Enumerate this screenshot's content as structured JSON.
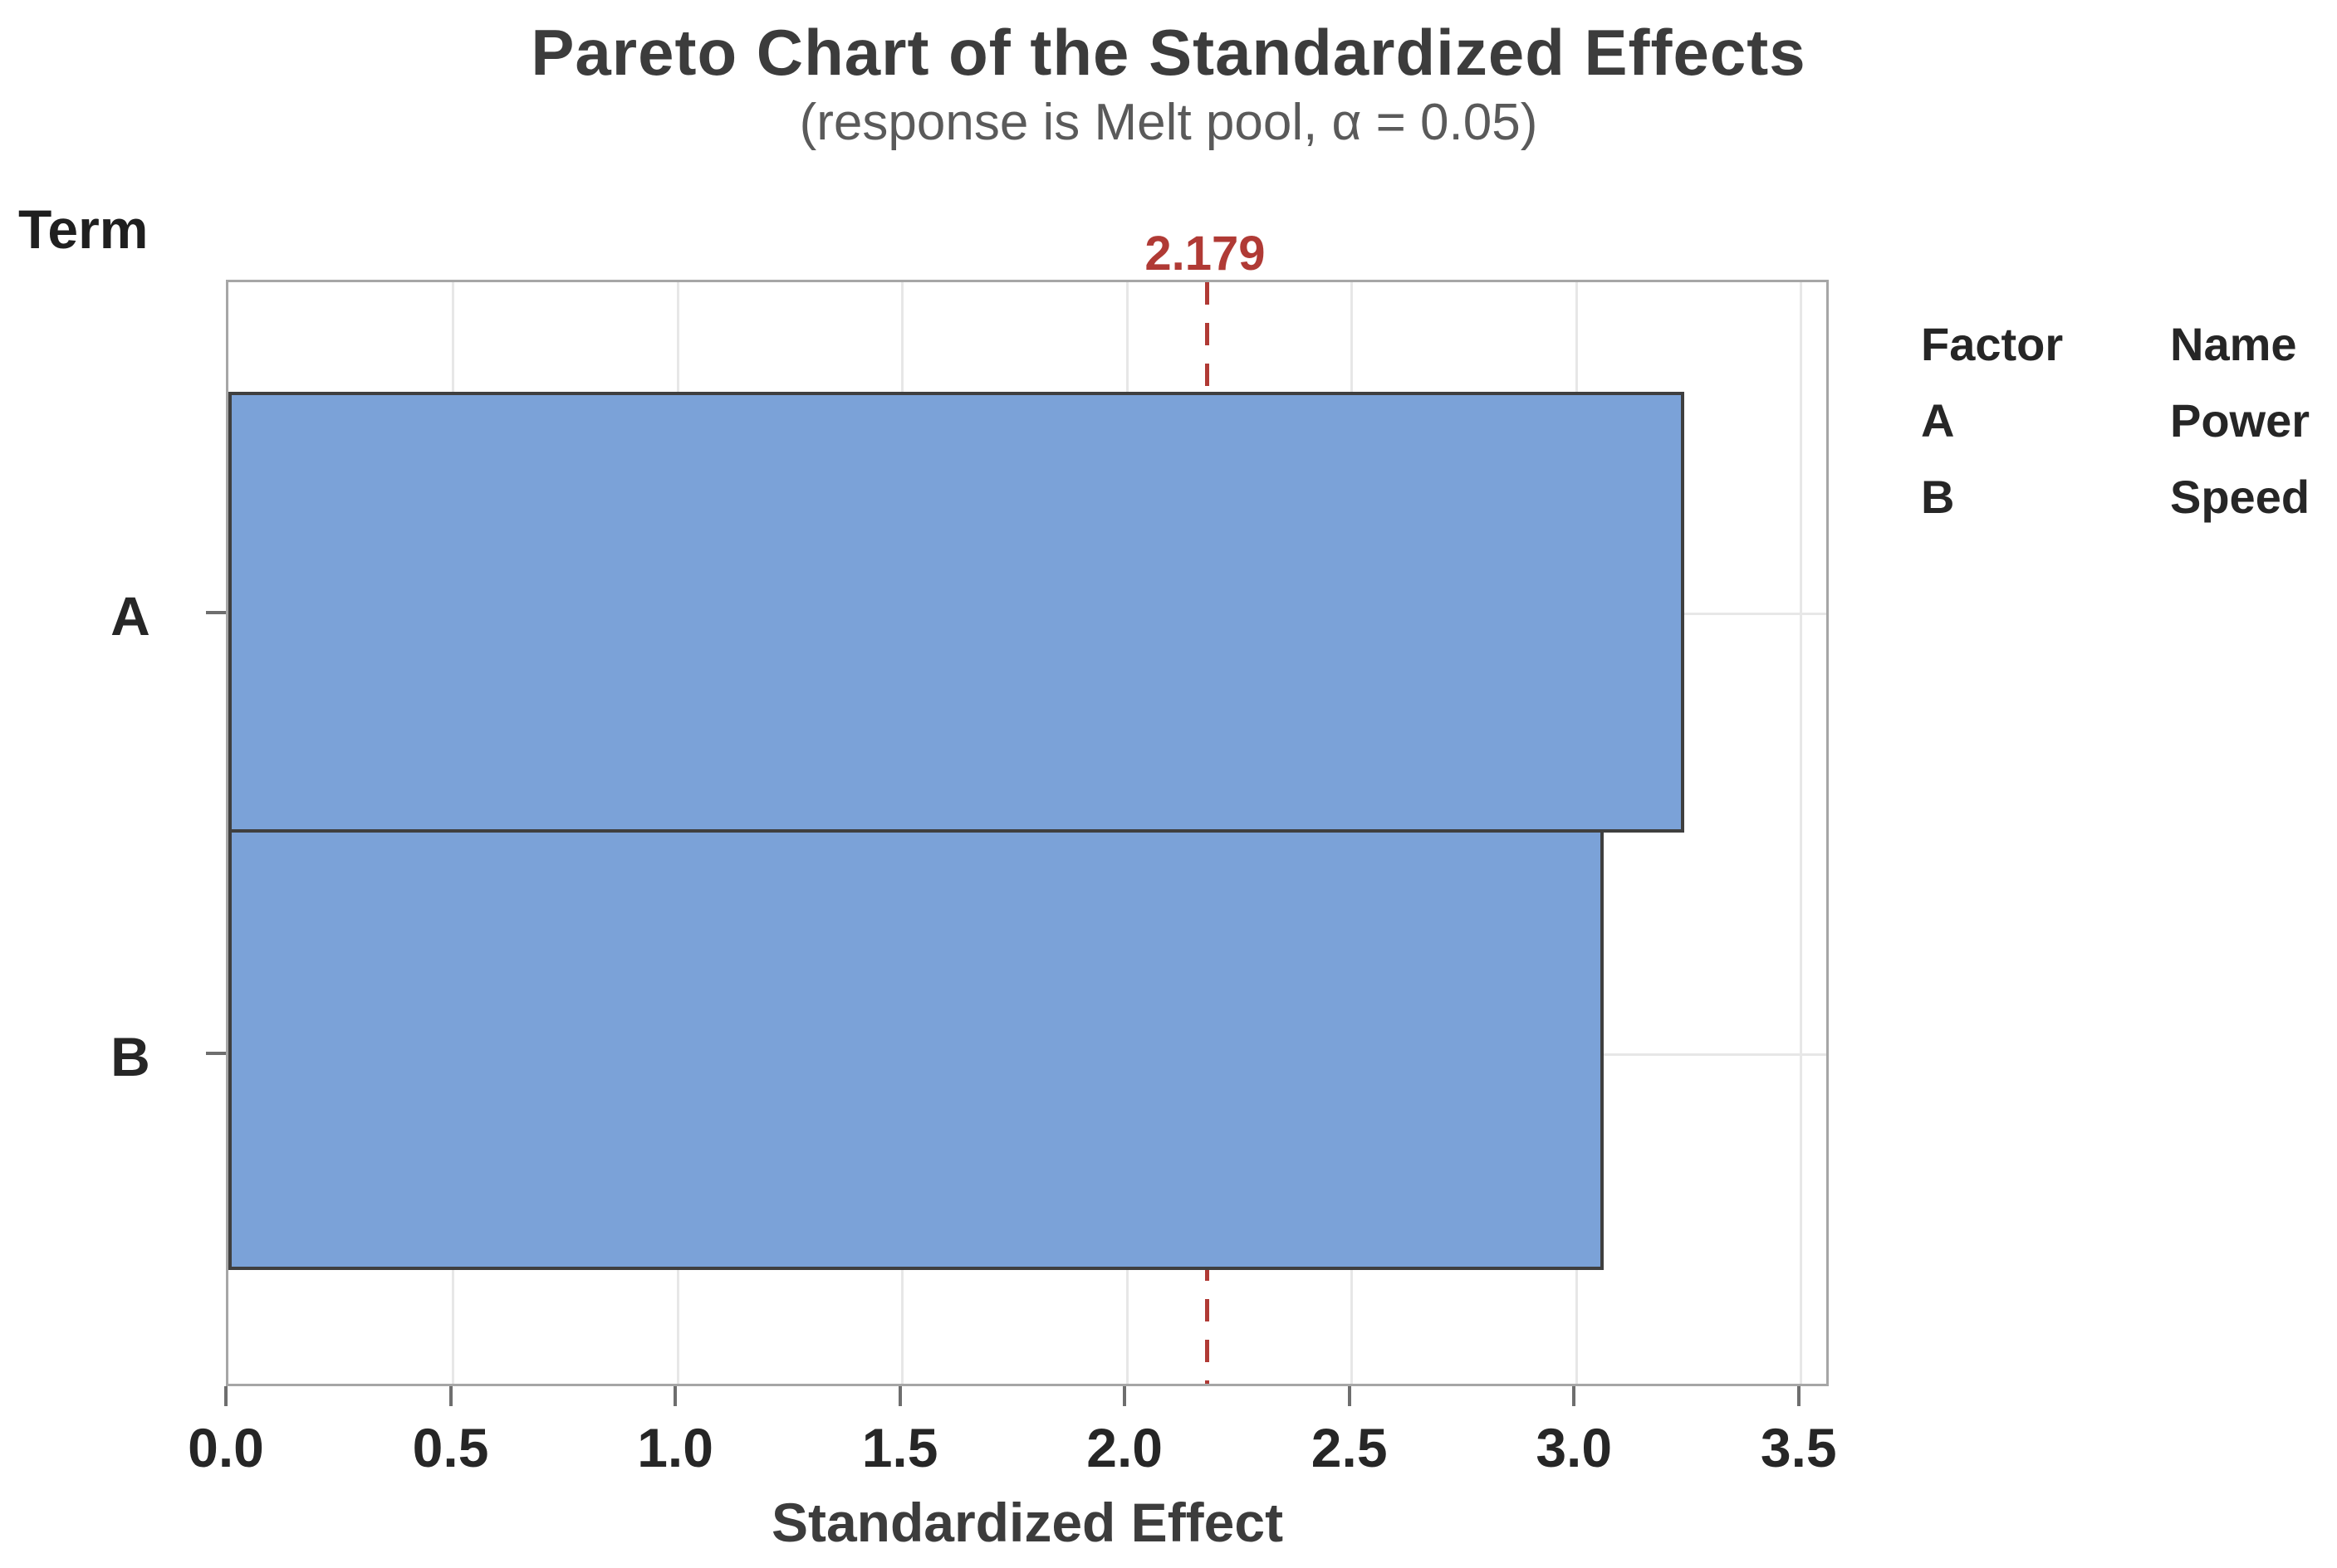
{
  "chart_data": {
    "type": "bar",
    "orientation": "horizontal",
    "title": "Pareto Chart of the Standardized Effects",
    "subtitle": "(response is Melt pool, α = 0.05)",
    "xlabel": "Standardized Effect",
    "ylabel": "Term",
    "categories": [
      "A",
      "B"
    ],
    "values": [
      3.24,
      3.06
    ],
    "xlim": [
      0,
      3.567
    ],
    "xticks": [
      "0.0",
      "0.5",
      "1.0",
      "1.5",
      "2.0",
      "2.5",
      "3.0",
      "3.5"
    ],
    "grid": true,
    "legend_position": "right",
    "reference_line": {
      "value": 2.179,
      "label": "2.179",
      "alpha": "0.05",
      "style": "dashed"
    }
  },
  "legend": {
    "columns": [
      "Factor",
      "Name"
    ],
    "rows": [
      {
        "factor": "A",
        "name": "Power"
      },
      {
        "factor": "B",
        "name": "Speed"
      }
    ]
  },
  "colors": {
    "bar_fill": "#7BA2D8",
    "bar_border": "#3F3F3F",
    "reference_red": "#B03A35",
    "gridline": "#E7E7E7",
    "plot_frame": "#A6A6A6",
    "title_text": "#3C3C3C",
    "subtitle_text": "#5A5A5A",
    "tick_text": "#262626"
  }
}
